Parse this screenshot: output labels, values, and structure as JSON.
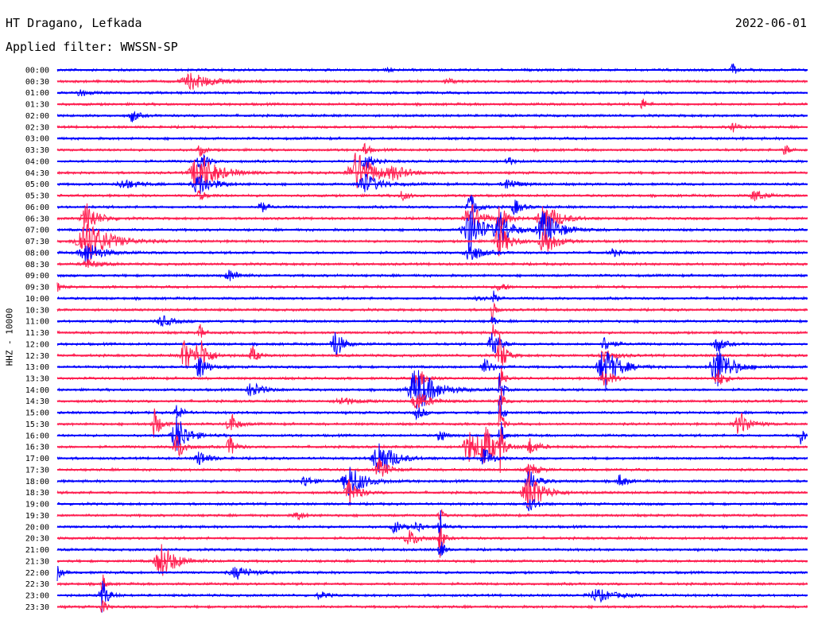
{
  "header": {
    "station": "HT Dragano, Lefkada",
    "date": "2022-06-01",
    "filter_text": "Applied filter: WWSSN-SP"
  },
  "chart_data": {
    "type": "line",
    "title": "HT Dragano, Lefkada",
    "subtitle": "Applied filter: WWSSN-SP",
    "ylabel": "HHZ - 10000",
    "y_tick_labels": [
      "00:00",
      "00:30",
      "01:00",
      "01:30",
      "02:00",
      "02:30",
      "03:00",
      "03:30",
      "04:00",
      "04:30",
      "05:00",
      "05:30",
      "06:00",
      "06:30",
      "07:00",
      "07:30",
      "08:00",
      "08:30",
      "09:00",
      "09:30",
      "10:00",
      "10:30",
      "11:00",
      "11:30",
      "12:00",
      "12:30",
      "13:00",
      "13:30",
      "14:00",
      "14:30",
      "15:00",
      "15:30",
      "16:00",
      "16:30",
      "17:00",
      "17:30",
      "18:00",
      "18:30",
      "19:00",
      "19:30",
      "20:00",
      "20:30",
      "21:00",
      "21:30",
      "22:00",
      "22:30",
      "23:00",
      "23:30"
    ],
    "line_colors": [
      "#0000ff",
      "#ff1e50"
    ],
    "grid": false,
    "events": [
      {
        "row": 0,
        "pos": 0.44,
        "amp": 6,
        "w": 0.005
      },
      {
        "row": 0,
        "pos": 0.9,
        "amp": 9,
        "w": 0.005
      },
      {
        "row": 1,
        "pos": 0.18,
        "amp": 10,
        "w": 0.03
      },
      {
        "row": 1,
        "pos": 0.52,
        "amp": 4,
        "w": 0.01
      },
      {
        "row": 2,
        "pos": 0.03,
        "amp": 5,
        "w": 0.01
      },
      {
        "row": 3,
        "pos": 0.78,
        "amp": 8,
        "w": 0.006
      },
      {
        "row": 4,
        "pos": 0.1,
        "amp": 9,
        "w": 0.008
      },
      {
        "row": 5,
        "pos": 0.9,
        "amp": 6,
        "w": 0.01
      },
      {
        "row": 7,
        "pos": 0.19,
        "amp": 9,
        "w": 0.006
      },
      {
        "row": 7,
        "pos": 0.41,
        "amp": 10,
        "w": 0.006
      },
      {
        "row": 7,
        "pos": 0.97,
        "amp": 8,
        "w": 0.006
      },
      {
        "row": 8,
        "pos": 0.19,
        "amp": 13,
        "w": 0.01
      },
      {
        "row": 8,
        "pos": 0.41,
        "amp": 14,
        "w": 0.01
      },
      {
        "row": 8,
        "pos": 0.6,
        "amp": 9,
        "w": 0.006
      },
      {
        "row": 9,
        "pos": 0.19,
        "amp": 26,
        "w": 0.025
      },
      {
        "row": 9,
        "pos": 0.4,
        "amp": 26,
        "w": 0.025
      },
      {
        "row": 9,
        "pos": 0.45,
        "amp": 7,
        "w": 0.02
      },
      {
        "row": 10,
        "pos": 0.19,
        "amp": 14,
        "w": 0.02
      },
      {
        "row": 10,
        "pos": 0.41,
        "amp": 14,
        "w": 0.02
      },
      {
        "row": 10,
        "pos": 0.09,
        "amp": 6,
        "w": 0.02
      },
      {
        "row": 10,
        "pos": 0.6,
        "amp": 7,
        "w": 0.015
      },
      {
        "row": 11,
        "pos": 0.19,
        "amp": 6,
        "w": 0.01
      },
      {
        "row": 11,
        "pos": 0.46,
        "amp": 6,
        "w": 0.01
      },
      {
        "row": 11,
        "pos": 0.93,
        "amp": 8,
        "w": 0.012
      },
      {
        "row": 12,
        "pos": 0.27,
        "amp": 10,
        "w": 0.008
      },
      {
        "row": 12,
        "pos": 0.55,
        "amp": 18,
        "w": 0.01
      },
      {
        "row": 12,
        "pos": 0.61,
        "amp": 10,
        "w": 0.01
      },
      {
        "row": 13,
        "pos": 0.04,
        "amp": 20,
        "w": 0.015
      },
      {
        "row": 13,
        "pos": 0.55,
        "amp": 22,
        "w": 0.015
      },
      {
        "row": 13,
        "pos": 0.59,
        "amp": 18,
        "w": 0.01
      },
      {
        "row": 13,
        "pos": 0.65,
        "amp": 22,
        "w": 0.02
      },
      {
        "row": 14,
        "pos": 0.55,
        "amp": 28,
        "w": 0.02
      },
      {
        "row": 14,
        "pos": 0.59,
        "amp": 22,
        "w": 0.015
      },
      {
        "row": 14,
        "pos": 0.65,
        "amp": 25,
        "w": 0.02
      },
      {
        "row": 15,
        "pos": 0.04,
        "amp": 28,
        "w": 0.03
      },
      {
        "row": 15,
        "pos": 0.59,
        "amp": 20,
        "w": 0.015
      },
      {
        "row": 15,
        "pos": 0.65,
        "amp": 20,
        "w": 0.015
      },
      {
        "row": 16,
        "pos": 0.04,
        "amp": 14,
        "w": 0.02
      },
      {
        "row": 16,
        "pos": 0.55,
        "amp": 14,
        "w": 0.015
      },
      {
        "row": 16,
        "pos": 0.74,
        "amp": 5,
        "w": 0.01
      },
      {
        "row": 17,
        "pos": 0.04,
        "amp": 6,
        "w": 0.015
      },
      {
        "row": 18,
        "pos": 0.23,
        "amp": 8,
        "w": 0.012
      },
      {
        "row": 19,
        "pos": 0.0,
        "amp": 6,
        "w": 0.006
      },
      {
        "row": 19,
        "pos": 0.59,
        "amp": 6,
        "w": 0.01
      },
      {
        "row": 20,
        "pos": 0.56,
        "amp": 6,
        "w": 0.008
      },
      {
        "row": 20,
        "pos": 0.58,
        "amp": 40,
        "w": 0.003
      },
      {
        "row": 21,
        "pos": 0.58,
        "amp": 40,
        "w": 0.003
      },
      {
        "row": 22,
        "pos": 0.14,
        "amp": 7,
        "w": 0.015
      },
      {
        "row": 22,
        "pos": 0.58,
        "amp": 14,
        "w": 0.003
      },
      {
        "row": 23,
        "pos": 0.19,
        "amp": 12,
        "w": 0.005
      },
      {
        "row": 23,
        "pos": 0.58,
        "amp": 14,
        "w": 0.003
      },
      {
        "row": 24,
        "pos": 0.37,
        "amp": 22,
        "w": 0.01
      },
      {
        "row": 24,
        "pos": 0.58,
        "amp": 20,
        "w": 0.01
      },
      {
        "row": 24,
        "pos": 0.73,
        "amp": 10,
        "w": 0.01
      },
      {
        "row": 24,
        "pos": 0.88,
        "amp": 10,
        "w": 0.01
      },
      {
        "row": 25,
        "pos": 0.17,
        "amp": 22,
        "w": 0.012
      },
      {
        "row": 25,
        "pos": 0.19,
        "amp": 22,
        "w": 0.012
      },
      {
        "row": 25,
        "pos": 0.26,
        "amp": 12,
        "w": 0.008
      },
      {
        "row": 25,
        "pos": 0.59,
        "amp": 28,
        "w": 0.008
      },
      {
        "row": 25,
        "pos": 0.73,
        "amp": 8,
        "w": 0.015
      },
      {
        "row": 26,
        "pos": 0.19,
        "amp": 18,
        "w": 0.01
      },
      {
        "row": 26,
        "pos": 0.73,
        "amp": 28,
        "w": 0.02
      },
      {
        "row": 26,
        "pos": 0.88,
        "amp": 28,
        "w": 0.02
      },
      {
        "row": 26,
        "pos": 0.57,
        "amp": 10,
        "w": 0.012
      },
      {
        "row": 27,
        "pos": 0.48,
        "amp": 16,
        "w": 0.012
      },
      {
        "row": 27,
        "pos": 0.59,
        "amp": 30,
        "w": 0.004
      },
      {
        "row": 27,
        "pos": 0.73,
        "amp": 14,
        "w": 0.01
      },
      {
        "row": 27,
        "pos": 0.88,
        "amp": 12,
        "w": 0.01
      },
      {
        "row": 28,
        "pos": 0.26,
        "amp": 10,
        "w": 0.015
      },
      {
        "row": 28,
        "pos": 0.48,
        "amp": 30,
        "w": 0.025
      },
      {
        "row": 28,
        "pos": 0.59,
        "amp": 30,
        "w": 0.004
      },
      {
        "row": 29,
        "pos": 0.48,
        "amp": 14,
        "w": 0.015
      },
      {
        "row": 29,
        "pos": 0.59,
        "amp": 30,
        "w": 0.004
      },
      {
        "row": 29,
        "pos": 0.38,
        "amp": 5,
        "w": 0.02
      },
      {
        "row": 30,
        "pos": 0.16,
        "amp": 12,
        "w": 0.008
      },
      {
        "row": 30,
        "pos": 0.59,
        "amp": 30,
        "w": 0.004
      },
      {
        "row": 30,
        "pos": 0.48,
        "amp": 8,
        "w": 0.01
      },
      {
        "row": 31,
        "pos": 0.13,
        "amp": 20,
        "w": 0.008
      },
      {
        "row": 31,
        "pos": 0.23,
        "amp": 20,
        "w": 0.008
      },
      {
        "row": 31,
        "pos": 0.59,
        "amp": 30,
        "w": 0.004
      },
      {
        "row": 31,
        "pos": 0.91,
        "amp": 16,
        "w": 0.015
      },
      {
        "row": 32,
        "pos": 0.16,
        "amp": 26,
        "w": 0.015
      },
      {
        "row": 32,
        "pos": 0.51,
        "amp": 12,
        "w": 0.006
      },
      {
        "row": 32,
        "pos": 0.59,
        "amp": 30,
        "w": 0.004
      },
      {
        "row": 32,
        "pos": 0.99,
        "amp": 12,
        "w": 0.008
      },
      {
        "row": 33,
        "pos": 0.16,
        "amp": 18,
        "w": 0.01
      },
      {
        "row": 33,
        "pos": 0.23,
        "amp": 14,
        "w": 0.008
      },
      {
        "row": 33,
        "pos": 0.55,
        "amp": 20,
        "w": 0.02
      },
      {
        "row": 33,
        "pos": 0.57,
        "amp": 22,
        "w": 0.015
      },
      {
        "row": 33,
        "pos": 0.63,
        "amp": 10,
        "w": 0.012
      },
      {
        "row": 33,
        "pos": 0.59,
        "amp": 30,
        "w": 0.004
      },
      {
        "row": 34,
        "pos": 0.19,
        "amp": 10,
        "w": 0.012
      },
      {
        "row": 34,
        "pos": 0.43,
        "amp": 24,
        "w": 0.02
      },
      {
        "row": 34,
        "pos": 0.57,
        "amp": 14,
        "w": 0.01
      },
      {
        "row": 35,
        "pos": 0.43,
        "amp": 14,
        "w": 0.012
      },
      {
        "row": 35,
        "pos": 0.63,
        "amp": 10,
        "w": 0.01
      },
      {
        "row": 36,
        "pos": 0.33,
        "amp": 8,
        "w": 0.01
      },
      {
        "row": 36,
        "pos": 0.39,
        "amp": 22,
        "w": 0.02
      },
      {
        "row": 36,
        "pos": 0.63,
        "amp": 14,
        "w": 0.012
      },
      {
        "row": 36,
        "pos": 0.75,
        "amp": 8,
        "w": 0.01
      },
      {
        "row": 37,
        "pos": 0.39,
        "amp": 18,
        "w": 0.012
      },
      {
        "row": 37,
        "pos": 0.63,
        "amp": 24,
        "w": 0.02
      },
      {
        "row": 38,
        "pos": 0.63,
        "amp": 10,
        "w": 0.01
      },
      {
        "row": 39,
        "pos": 0.32,
        "amp": 6,
        "w": 0.01
      },
      {
        "row": 39,
        "pos": 0.51,
        "amp": 12,
        "w": 0.004
      },
      {
        "row": 40,
        "pos": 0.45,
        "amp": 8,
        "w": 0.01
      },
      {
        "row": 40,
        "pos": 0.48,
        "amp": 8,
        "w": 0.008
      },
      {
        "row": 40,
        "pos": 0.51,
        "amp": 30,
        "w": 0.004
      },
      {
        "row": 41,
        "pos": 0.47,
        "amp": 10,
        "w": 0.015
      },
      {
        "row": 41,
        "pos": 0.51,
        "amp": 30,
        "w": 0.004
      },
      {
        "row": 42,
        "pos": 0.51,
        "amp": 28,
        "w": 0.004
      },
      {
        "row": 43,
        "pos": 0.14,
        "amp": 22,
        "w": 0.02
      },
      {
        "row": 44,
        "pos": 0.0,
        "amp": 10,
        "w": 0.006
      },
      {
        "row": 44,
        "pos": 0.24,
        "amp": 8,
        "w": 0.02
      },
      {
        "row": 45,
        "pos": 0.06,
        "amp": 16,
        "w": 0.004
      },
      {
        "row": 46,
        "pos": 0.06,
        "amp": 22,
        "w": 0.008
      },
      {
        "row": 46,
        "pos": 0.35,
        "amp": 5,
        "w": 0.01
      },
      {
        "row": 46,
        "pos": 0.72,
        "amp": 8,
        "w": 0.025
      },
      {
        "row": 47,
        "pos": 0.06,
        "amp": 16,
        "w": 0.004
      }
    ]
  }
}
